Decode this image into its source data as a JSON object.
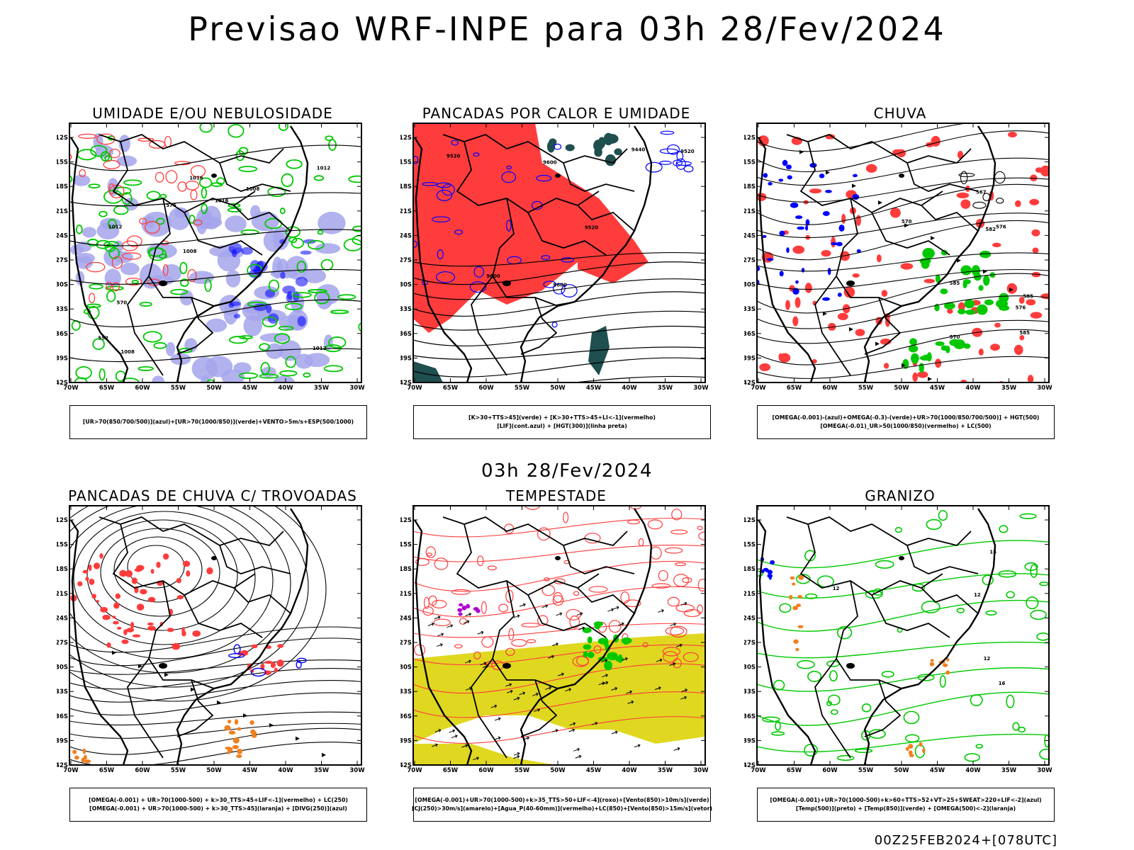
{
  "title": "Previsao WRF-INPE  para 03h 28/Fev/2024",
  "subtitle": "03h 28/Fev/2024",
  "footer": "00Z25FEB2024+[078UTC]",
  "axes": {
    "lat_labels": [
      "12S",
      "15S",
      "18S",
      "21S",
      "24S",
      "27S",
      "30S",
      "33S",
      "36S",
      "39S",
      "42S"
    ],
    "lon_labels": [
      "70W",
      "65W",
      "60W",
      "55W",
      "50W",
      "45W",
      "40W",
      "35W",
      "30W"
    ]
  },
  "colors": {
    "verde": "#00c800",
    "azul": "#0000ff",
    "lilas": "#a4a4ec",
    "vermelho": "#ff3c3c",
    "laranja": "#f08020",
    "amarelo": "#e0d820",
    "verde_escuro": "#1f4f4f",
    "roxo": "#b000d0"
  },
  "panels": [
    {
      "id": "umidade",
      "title": "UMIDADE E/OU NEBULOSIDADE",
      "legend": [
        "[UR>70(850/700/500)](azul)+[UR>70(1000/850)](verde)+VENTO>5m/s+ESP(500/1000)"
      ],
      "contour_labels": [
        "1012",
        "1012",
        "1012",
        "1008",
        "1008",
        "1008",
        "1016",
        "1016",
        "570",
        "576",
        "552"
      ]
    },
    {
      "id": "pancadas_calor",
      "title": "PANCADAS POR CALOR E UMIDADE",
      "legend": [
        "[K>30+TTS>45](verde) + [K>30+TTS>45+LI<-1](vermelho)",
        "[LIF](cont.azul) + [HGT(300)](linha preta)"
      ],
      "contour_labels": [
        "9600",
        "9600",
        "9600",
        "9520",
        "9520",
        "9440",
        "9520"
      ]
    },
    {
      "id": "chuva",
      "title": "CHUVA",
      "legend": [
        "[OMEGA(-0.001)-(azul)+OMEGA(-0.3)-(verde)+UR>70(1000/850/700/500)] + HGT(500)",
        "[OMEGA(-0.01)_UR>50(1000/850)(vermelho) + LC(500)"
      ],
      "contour_labels": [
        "585",
        "585",
        "582",
        "576",
        "570",
        "567",
        "576",
        "570",
        "585"
      ]
    },
    {
      "id": "pancadas_trovoadas",
      "title": "PANCADAS DE CHUVA C/ TROVOADAS",
      "legend": [
        "[OMEGA(-0.001) + UR>70(1000-500) + k>30_TTS>45+LIF<-1](vermelho) + LC(250)",
        "[OMEGA(-0.001) + UR>70(1000-500) + k>30_TTS>45](laranja) + [DIVG(250)](azul)"
      ],
      "contour_labels": []
    },
    {
      "id": "tempestade",
      "title": "TEMPESTADE",
      "legend": [
        "[OMEGA(-0.001)+UR>70(1000-500)+k>35_TTS>50+LIF<-4](roxo)+[Vento(850)>10m/s](verde)",
        "[CJ(250)>30m/s](amarelo)+[Agua_P(40-60mm)](vermelho)+LC(850)+[Vento(850)>15m/s](vetor)"
      ],
      "contour_labels": []
    },
    {
      "id": "granizo",
      "title": "GRANIZO",
      "legend": [
        "[OMEGA(-0.001)+UR>70(1000-500)+k>60+TTS>52+VT>25+SWEAT>220+LIF<-2](azul)",
        "[Temp(500)](preto) + [Temp(850)](verde) + [OMEGA(500)<-2](laranja)"
      ],
      "contour_labels": [
        "16",
        "15",
        "12",
        "12",
        "12"
      ]
    }
  ]
}
